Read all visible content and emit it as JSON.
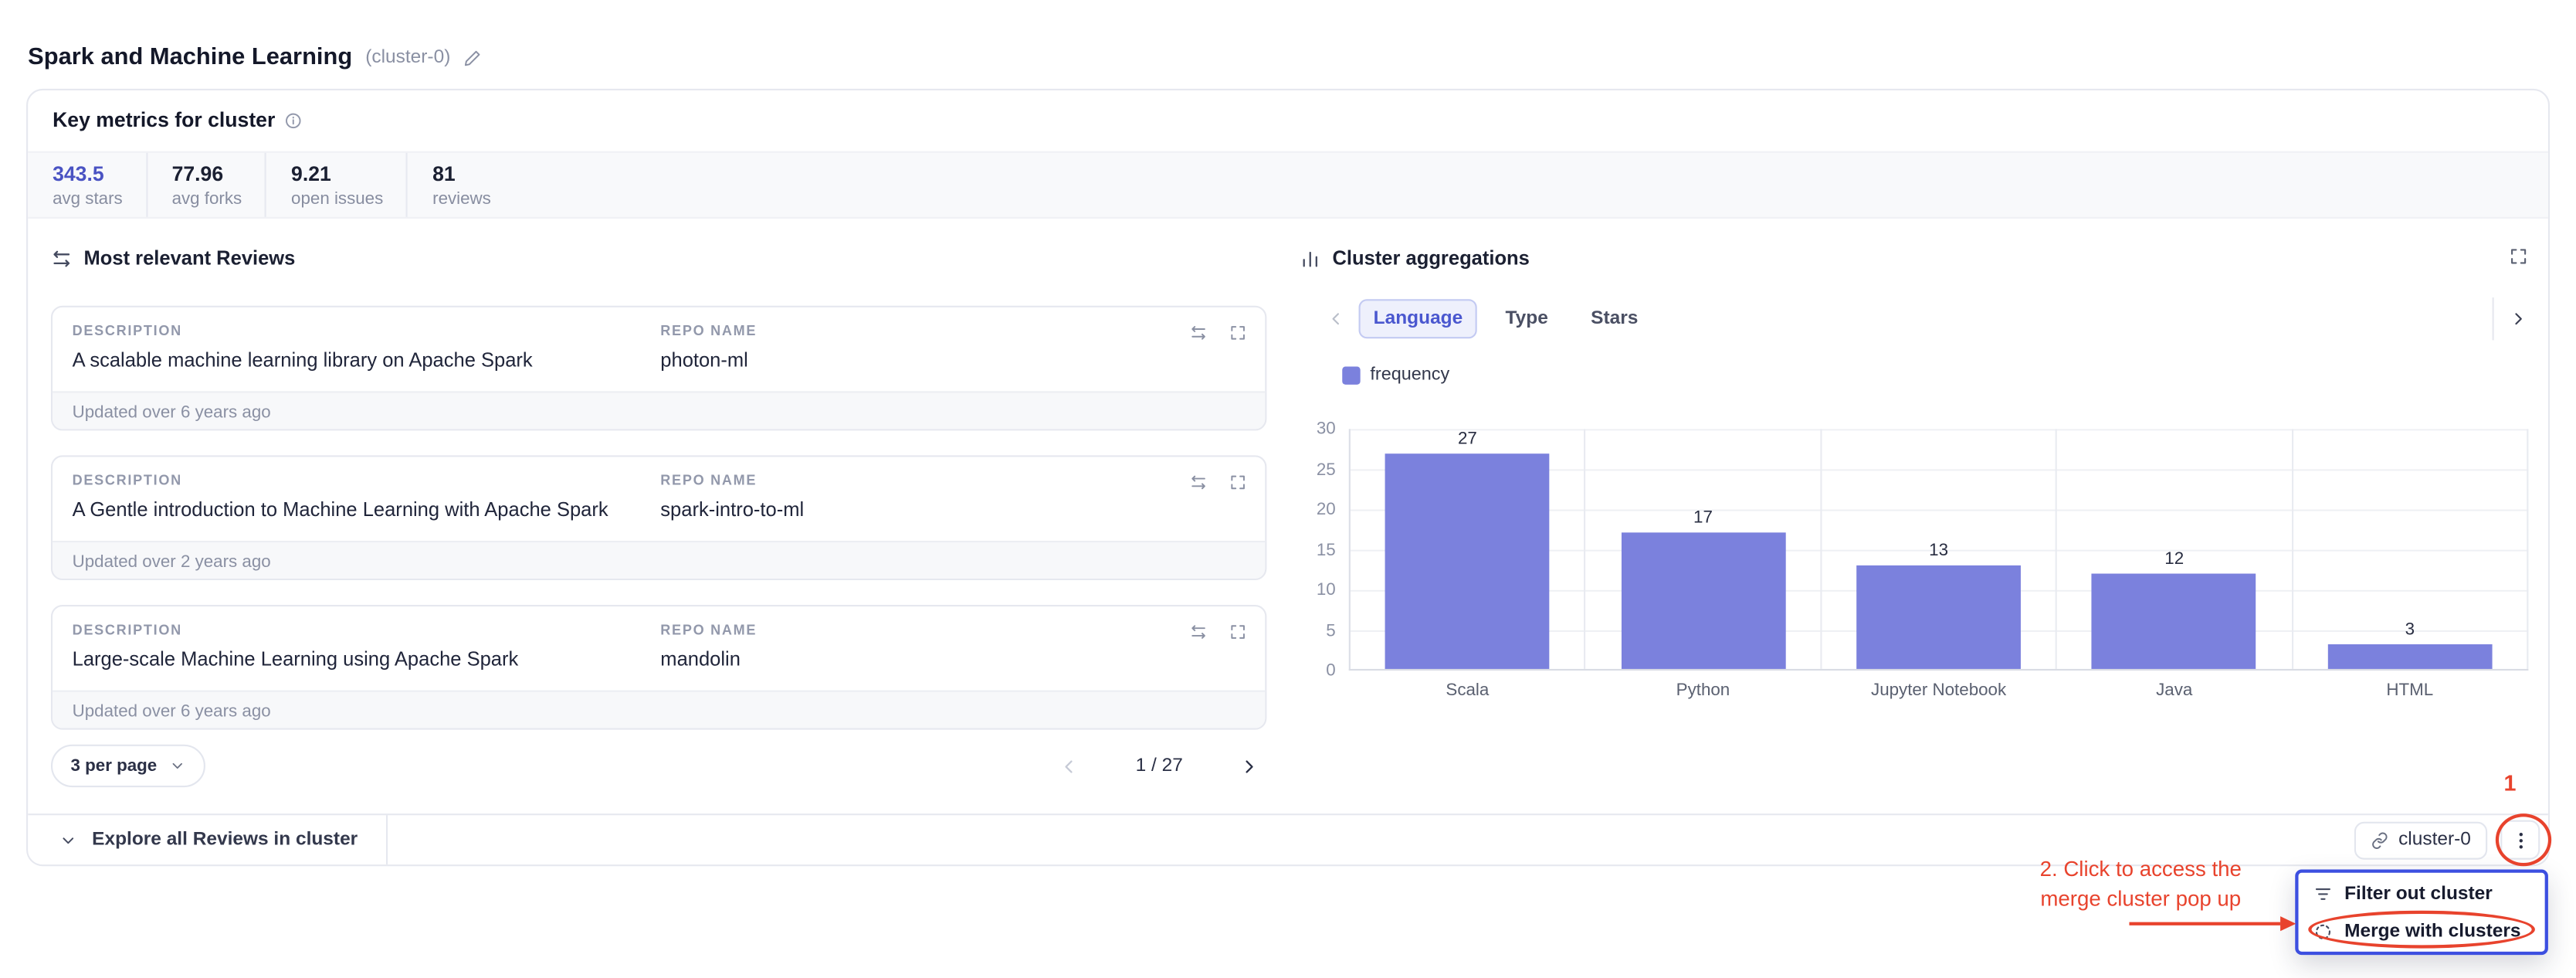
{
  "header": {
    "title": "Spark and Machine Learning",
    "cluster_tag": "(cluster-0)"
  },
  "key_metrics": {
    "title": "Key metrics for cluster",
    "items": [
      {
        "value": "343.5",
        "label": "avg stars"
      },
      {
        "value": "77.96",
        "label": "avg forks"
      },
      {
        "value": "9.21",
        "label": "open issues"
      },
      {
        "value": "81",
        "label": "reviews"
      }
    ]
  },
  "reviews": {
    "title": "Most relevant Reviews",
    "labels": {
      "description": "DESCRIPTION",
      "repo": "REPO NAME"
    },
    "cards": [
      {
        "description": "A scalable machine learning library on Apache Spark",
        "repo": "photon-ml",
        "updated": "Updated over 6 years ago"
      },
      {
        "description": "A Gentle introduction to Machine Learning with Apache Spark",
        "repo": "spark-intro-to-ml",
        "updated": "Updated over 2 years ago"
      },
      {
        "description": "Large-scale Machine Learning using Apache Spark",
        "repo": "mandolin",
        "updated": "Updated over 6 years ago"
      }
    ],
    "per_page": "3 per page",
    "page_indicator": "1 / 27"
  },
  "aggregations": {
    "title": "Cluster aggregations",
    "tabs": [
      {
        "label": "Language",
        "active": true
      },
      {
        "label": "Type",
        "active": false
      },
      {
        "label": "Stars",
        "active": false
      }
    ],
    "legend": "frequency"
  },
  "chart_data": {
    "type": "bar",
    "categories": [
      "Scala",
      "Python",
      "Jupyter Notebook",
      "Java",
      "HTML"
    ],
    "values": [
      27,
      17,
      13,
      12,
      3
    ],
    "series_name": "frequency",
    "xlabel": "",
    "ylabel": "",
    "ylim": [
      0,
      30
    ],
    "yticks": [
      0,
      5,
      10,
      15,
      20,
      25,
      30
    ],
    "bar_color": "#7b81dd",
    "grid": true,
    "legend_position": "top-left"
  },
  "footer": {
    "explore_label": "Explore all Reviews in cluster",
    "cluster_chip": "cluster-0"
  },
  "context_menu": {
    "items": [
      {
        "label": "Filter out cluster",
        "icon": "filter-icon"
      },
      {
        "label": "Merge with clusters",
        "icon": "merge-icon"
      }
    ],
    "border_color": "#3c4fe0"
  },
  "annotations": {
    "step_one": "1",
    "step_two_line1": "2. Click to access the",
    "step_two_line2": "merge cluster pop up",
    "color": "#e8432d"
  }
}
